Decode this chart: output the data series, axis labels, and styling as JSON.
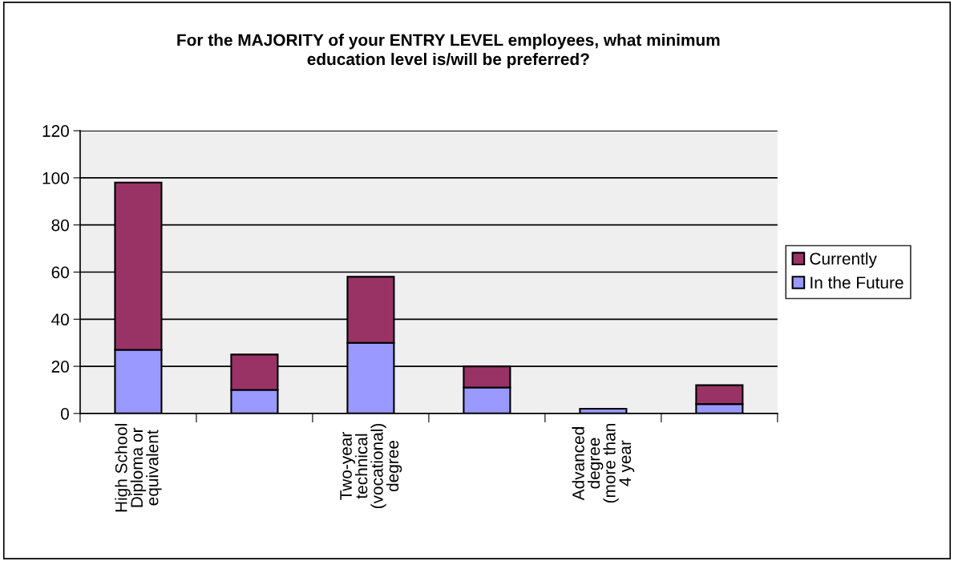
{
  "chart_data": {
    "type": "bar",
    "stacked": true,
    "title": "For the MAJORITY of your ENTRY LEVEL employees, what minimum\neducation level is/will be preferred?",
    "categories": [
      "High School\nDiploma or\nequivalent",
      null,
      "Two-year\ntechnical\n(vocational)\ndegree",
      null,
      "Advanced\ndegree\n(more than\n4 year",
      null
    ],
    "series": [
      {
        "name": "In the Future",
        "color": "#9999ff",
        "values": [
          27,
          10,
          30,
          11,
          2,
          4
        ]
      },
      {
        "name": "Currently",
        "color": "#993366",
        "values": [
          71,
          15,
          28,
          9,
          null,
          8
        ]
      }
    ],
    "ylim": [
      0,
      120
    ],
    "yticks": [
      0,
      20,
      40,
      60,
      80,
      100,
      120
    ],
    "grid": "y",
    "legend": "right"
  }
}
